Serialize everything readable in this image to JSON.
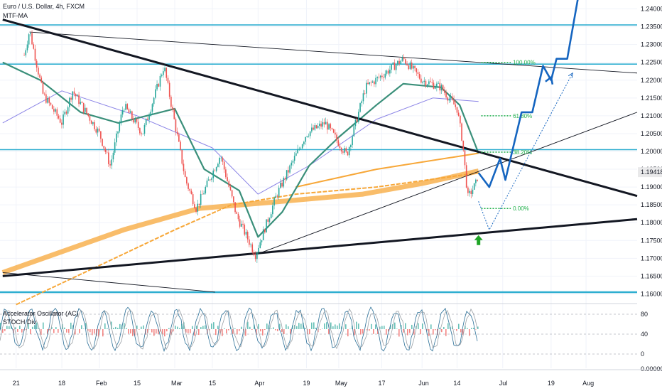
{
  "header": {
    "symbol_title": "Euro / U.S. Dollar, 4h, FXCM",
    "indicator": "MTF-MA"
  },
  "oscillator": {
    "title": "Accelerator Oscillator (AC)",
    "subtitle": "STOCH Div",
    "scale": [
      "80",
      "40",
      "0"
    ],
    "extra_tick": "0.00000"
  },
  "colors": {
    "candle_up": "#26a69a",
    "candle_down": "#ef5350",
    "trend_black": "#131722",
    "horizontal_blue": "#2eaed0",
    "projection_blue": "#1565c0",
    "ma_orange": "#f7a738",
    "ma_teal": "#3a8f7a",
    "ma_purple": "#8b84e6",
    "fib_green": "#22b14c",
    "last_price_bg": "#e9e9ea"
  },
  "price_axis": {
    "ticks": [
      "1.24000",
      "1.23500",
      "1.23000",
      "1.22500",
      "1.22000",
      "1.21500",
      "1.21000",
      "1.20500",
      "1.20000",
      "1.19500",
      "1.19000",
      "1.18500",
      "1.18000",
      "1.17500",
      "1.17000",
      "1.16500",
      "1.16000"
    ],
    "last_price": "1.19418"
  },
  "time_axis": {
    "labels": [
      "21",
      "18",
      "Feb",
      "15",
      "Mar",
      "15",
      "Apr",
      "19",
      "May",
      "17",
      "Jun",
      "14",
      "Jul",
      "19",
      "Aug"
    ]
  },
  "fib_levels": [
    {
      "label": "100.00%",
      "price": 1.225
    },
    {
      "label": "61.80%",
      "price": 1.21
    },
    {
      "label": "38.20%",
      "price": 1.1998
    },
    {
      "label": "0.00%",
      "price": 1.184
    }
  ],
  "chart_data": {
    "type": "line",
    "title": "Euro / U.S. Dollar, 4h, FXCM",
    "ylim": [
      1.1575,
      1.2425
    ],
    "horizontal_levels": [
      1.2355,
      1.2245,
      1.2005,
      1.1605
    ],
    "price_path": [
      [
        "2021-01-04",
        1.227
      ],
      [
        "2021-01-06",
        1.234
      ],
      [
        "2021-01-11",
        1.216
      ],
      [
        "2021-01-18",
        1.208
      ],
      [
        "2021-01-22",
        1.217
      ],
      [
        "2021-02-01",
        1.205
      ],
      [
        "2021-02-05",
        1.196
      ],
      [
        "2021-02-10",
        1.213
      ],
      [
        "2021-02-17",
        1.205
      ],
      [
        "2021-02-25",
        1.224
      ],
      [
        "2021-03-05",
        1.192
      ],
      [
        "2021-03-09",
        1.184
      ],
      [
        "2021-03-18",
        1.199
      ],
      [
        "2021-03-24",
        1.182
      ],
      [
        "2021-03-31",
        1.171
      ],
      [
        "2021-04-08",
        1.188
      ],
      [
        "2021-04-19",
        1.205
      ],
      [
        "2021-04-26",
        1.208
      ],
      [
        "2021-05-04",
        1.199
      ],
      [
        "2021-05-11",
        1.218
      ],
      [
        "2021-05-20",
        1.223
      ],
      [
        "2021-05-25",
        1.226
      ],
      [
        "2021-06-01",
        1.22
      ],
      [
        "2021-06-08",
        1.218
      ],
      [
        "2021-06-14",
        1.212
      ],
      [
        "2021-06-16",
        1.203
      ],
      [
        "2021-06-18",
        1.187
      ],
      [
        "2021-06-21",
        1.191
      ],
      [
        "2021-06-22",
        1.194
      ]
    ],
    "projection_path": [
      [
        "2021-06-22",
        1.194
      ],
      [
        "2021-06-26",
        1.19
      ],
      [
        "2021-06-30",
        1.198
      ],
      [
        "2021-07-02",
        1.192
      ],
      [
        "2021-07-08",
        1.211
      ],
      [
        "2021-07-12",
        1.211
      ],
      [
        "2021-07-16",
        1.224
      ],
      [
        "2021-07-19",
        1.22
      ],
      [
        "2021-07-21",
        1.226
      ],
      [
        "2021-07-25",
        1.226
      ],
      [
        "2021-07-29",
        1.243
      ]
    ],
    "alt_projection_path": [
      [
        "2021-06-22",
        1.186
      ],
      [
        "2021-06-26",
        1.178
      ],
      [
        "2021-07-27",
        1.222
      ]
    ],
    "trendlines": [
      {
        "name": "upper-resistance",
        "from": [
          "2020-12-27",
          1.237
        ],
        "to": [
          "2021-08-20",
          1.1875
        ]
      },
      {
        "name": "lower-support",
        "from": [
          "2020-12-27",
          1.165
        ],
        "to": [
          "2021-08-20",
          1.181
        ]
      },
      {
        "name": "top-thin",
        "from": [
          "2021-01-06",
          1.2335
        ],
        "to": [
          "2021-08-20",
          1.222
        ]
      },
      {
        "name": "rising-thin",
        "from": [
          "2021-03-31",
          1.171
        ],
        "to": [
          "2021-08-20",
          1.211
        ]
      },
      {
        "name": "falling-thin",
        "from": [
          "2020-12-27",
          1.166
        ],
        "to": [
          "2021-03-16",
          1.1605
        ]
      }
    ],
    "moving_averages": [
      {
        "name": "orange-step",
        "points": [
          [
            "2021-01-01",
            1.157
          ],
          [
            "2021-02-01",
            1.168
          ],
          [
            "2021-03-01",
            1.178
          ],
          [
            "2021-03-22",
            1.185
          ],
          [
            "2021-04-15",
            1.188
          ],
          [
            "2021-05-15",
            1.19
          ],
          [
            "2021-06-22",
            1.194
          ]
        ]
      },
      {
        "name": "orange-wide",
        "points": [
          [
            "2020-12-27",
            1.166
          ],
          [
            "2021-02-10",
            1.178
          ],
          [
            "2021-03-10",
            1.184
          ],
          [
            "2021-04-10",
            1.186
          ],
          [
            "2021-05-10",
            1.188
          ],
          [
            "2021-06-01",
            1.191
          ],
          [
            "2021-06-22",
            1.1945
          ]
        ]
      },
      {
        "name": "orange-upper",
        "points": [
          [
            "2021-04-15",
            1.19
          ],
          [
            "2021-05-15",
            1.195
          ],
          [
            "2021-06-22",
            1.1995
          ]
        ]
      },
      {
        "name": "purple",
        "points": [
          [
            "2020-12-27",
            1.208
          ],
          [
            "2021-01-18",
            1.217
          ],
          [
            "2021-02-15",
            1.21
          ],
          [
            "2021-03-15",
            1.201
          ],
          [
            "2021-04-01",
            1.188
          ],
          [
            "2021-04-20",
            1.196
          ],
          [
            "2021-05-15",
            1.209
          ],
          [
            "2021-06-05",
            1.215
          ],
          [
            "2021-06-22",
            1.214
          ]
        ]
      },
      {
        "name": "teal",
        "points": [
          [
            "2020-12-27",
            1.225
          ],
          [
            "2021-01-10",
            1.22
          ],
          [
            "2021-01-25",
            1.211
          ],
          [
            "2021-02-08",
            1.208
          ],
          [
            "2021-03-01",
            1.212
          ],
          [
            "2021-03-12",
            1.195
          ],
          [
            "2021-03-25",
            1.189
          ],
          [
            "2021-04-01",
            1.176
          ],
          [
            "2021-04-10",
            1.183
          ],
          [
            "2021-04-20",
            1.196
          ],
          [
            "2021-05-01",
            1.204
          ],
          [
            "2021-05-15",
            1.213
          ],
          [
            "2021-05-25",
            1.219
          ],
          [
            "2021-06-08",
            1.218
          ],
          [
            "2021-06-15",
            1.213
          ],
          [
            "2021-06-22",
            1.1995
          ]
        ]
      }
    ],
    "oscillator_ylim": [
      -10,
      100
    ]
  }
}
